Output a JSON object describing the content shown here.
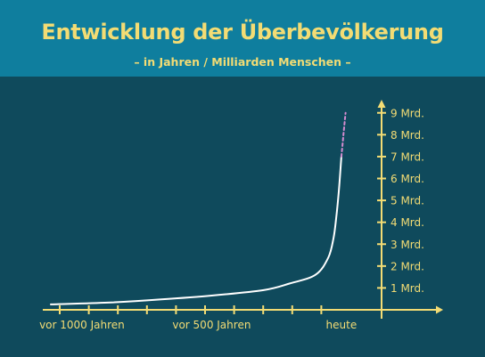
{
  "header": {
    "title": "Entwicklung der Überbevölkerung",
    "subtitle": "– in Jahren / Milliarden Menschen –"
  },
  "colors": {
    "header_bg": "#0f7e9e",
    "chart_bg": "#0f4a5c",
    "accent": "#f3dc74",
    "curve": "#ffffff",
    "projection": "#d58bd0"
  },
  "chart_data": {
    "type": "line",
    "title": "Entwicklung der Überbevölkerung",
    "subtitle": "– in Jahren / Milliarden Menschen –",
    "x_tick_labels": [
      "vor 1000 Jahren",
      "vor 500 Jahren",
      "heute"
    ],
    "x_tick_values": [
      -1000,
      -500,
      0
    ],
    "y_tick_labels": [
      "1 Mrd.",
      "2 Mrd.",
      "3 Mrd.",
      "4 Mrd.",
      "5 Mrd.",
      "6 Mrd.",
      "7 Mrd.",
      "8 Mrd.",
      "9 Mrd."
    ],
    "y_tick_values": [
      1,
      2,
      3,
      4,
      5,
      6,
      7,
      8,
      9
    ],
    "xlim": [
      -1120,
      100
    ],
    "ylim": [
      0,
      9.6
    ],
    "grid": false,
    "series": [
      {
        "style": "solid",
        "x": [
          -1120,
          -900,
          -700,
          -500,
          -300,
          -200,
          -100,
          -50,
          -30,
          -20,
          -10,
          0
        ],
        "y": [
          0.25,
          0.33,
          0.47,
          0.65,
          0.9,
          1.2,
          1.6,
          2.4,
          3.3,
          4.2,
          5.4,
          7.0
        ]
      },
      {
        "style": "dashed",
        "x": [
          0,
          8,
          16
        ],
        "y": [
          7.0,
          8.0,
          9.0
        ]
      }
    ]
  }
}
